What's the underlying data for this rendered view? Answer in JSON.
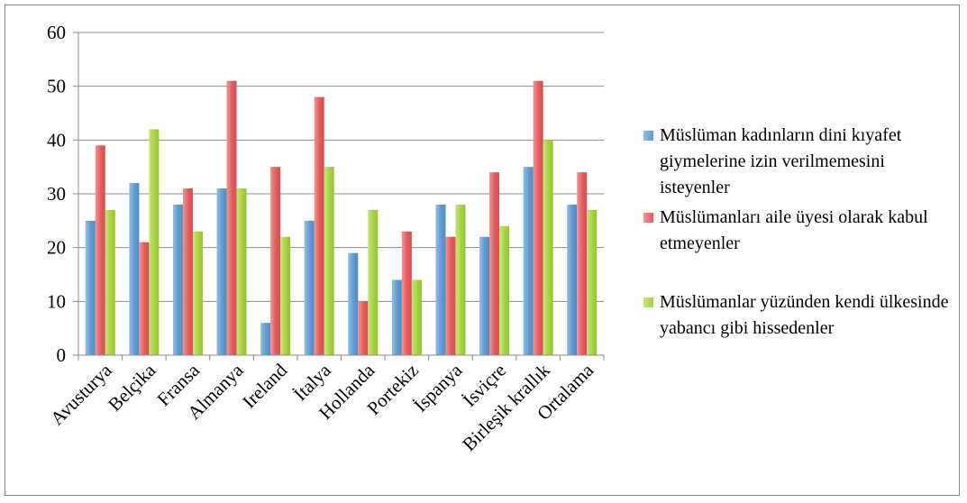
{
  "chart_data": {
    "type": "bar",
    "categories": [
      "Avusturya",
      "Belçika",
      "Fransa",
      "Almanya",
      "Ireland",
      "İtalya",
      "Hollanda",
      "Portekiz",
      "İspanya",
      "İsviçre",
      "Birleşik krallık",
      "Ortalama"
    ],
    "series": [
      {
        "name": "Müslüman kadınların dini kıyafet giymelerine izin verilmemesini isteyenler",
        "color": "#5b9bd5",
        "values": [
          25,
          32,
          28,
          31,
          6,
          25,
          19,
          14,
          28,
          22,
          35,
          28
        ]
      },
      {
        "name": "Müslümanları aile üyesi olarak kabul etmeyenler",
        "color": "#e85a5a",
        "values": [
          39,
          21,
          31,
          51,
          35,
          48,
          10,
          23,
          22,
          34,
          51,
          34
        ]
      },
      {
        "name": "Müslümanlar yüzünden kendi ülkesinde yabancı gibi hissedenler",
        "color": "#a6d63c",
        "values": [
          27,
          42,
          23,
          31,
          22,
          35,
          27,
          14,
          28,
          24,
          40,
          27
        ]
      }
    ],
    "yticks": [
      "0",
      "10",
      "20",
      "30",
      "40",
      "50",
      "60"
    ],
    "ylim": [
      0,
      60
    ],
    "grid": true,
    "legend_position": "right"
  }
}
